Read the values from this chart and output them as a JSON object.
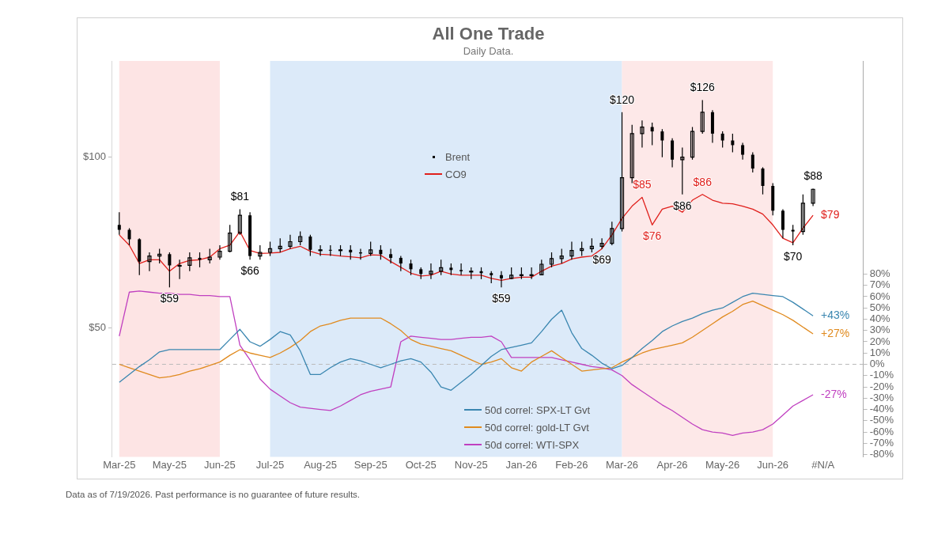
{
  "chart_data": {
    "type": "line",
    "title": "All One Trade",
    "subtitle": "Daily Data.",
    "annotations": [
      "Data as of 7/19/2026. Past performance is no guarantee of future results."
    ],
    "categories": [
      "Mar-25",
      null,
      null,
      null,
      null,
      "May-25",
      null,
      null,
      null,
      null,
      "Jun-25",
      null,
      null,
      null,
      null,
      "Jul-25",
      null,
      null,
      null,
      null,
      "Aug-25",
      null,
      null,
      null,
      null,
      "Sep-25",
      null,
      null,
      null,
      null,
      "Oct-25",
      null,
      null,
      null,
      null,
      "Nov-25",
      null,
      null,
      null,
      null,
      "Jan-26",
      null,
      null,
      null,
      null,
      "Feb-26",
      null,
      null,
      null,
      null,
      "Mar-26",
      null,
      null,
      null,
      null,
      "Apr-26",
      null,
      null,
      null,
      null,
      "May-26",
      null,
      null,
      null,
      null,
      "Jun-26",
      null,
      null,
      null,
      null,
      "#N/A"
    ],
    "log": "y",
    "ylim": [
      29.7,
      147.7
    ],
    "yticks": [
      {
        "value": 50,
        "label": "$50"
      },
      {
        "value": 100,
        "label": "$100"
      }
    ],
    "y2lim": [
      -82,
      269
    ],
    "y2ticks": [
      {
        "value": -80,
        "label": "-80%"
      },
      {
        "value": -70,
        "label": "-70%"
      },
      {
        "value": -60,
        "label": "-60%"
      },
      {
        "value": -50,
        "label": "-50%"
      },
      {
        "value": -40,
        "label": "-40%"
      },
      {
        "value": -30,
        "label": "-30%"
      },
      {
        "value": -20,
        "label": "-20%"
      },
      {
        "value": -10,
        "label": "-10%"
      },
      {
        "value": 0,
        "label": "0%"
      },
      {
        "value": 10,
        "label": "10%"
      },
      {
        "value": 20,
        "label": "20%"
      },
      {
        "value": 30,
        "label": "30%"
      },
      {
        "value": 40,
        "label": "40%"
      },
      {
        "value": 50,
        "label": "50%"
      },
      {
        "value": 60,
        "label": "60%"
      },
      {
        "value": 70,
        "label": "70%"
      },
      {
        "value": 80,
        "label": "80%"
      }
    ],
    "grid": false,
    "legend": "center",
    "ref_lines": [
      {
        "axis": "y2",
        "value": 0,
        "color": "#bbbbbb",
        "line_style": "dashed"
      }
    ],
    "bands": [
      {
        "axis": "x",
        "from": "Mar-25",
        "to": "Jun-25",
        "color": "#fde4e4"
      },
      {
        "axis": "x",
        "from": "Jul-25",
        "to": "Mar-26",
        "color": "#dceaf9"
      },
      {
        "axis": "x",
        "from": "Mar-26",
        "to": "Jun-26",
        "color": "#fde8e8"
      }
    ],
    "series": [
      {
        "name": "Brent",
        "type": "candlestick",
        "color": "#000000",
        "ohlc": [
          [
            76,
            80,
            73,
            74.5
          ],
          [
            74.5,
            75,
            70,
            71.7
          ],
          [
            71.7,
            72,
            62,
            65.5
          ],
          [
            65.5,
            68,
            63,
            67
          ],
          [
            67,
            69,
            65,
            67.5
          ],
          [
            67.5,
            68,
            59,
            64.5
          ],
          [
            64.5,
            66,
            61,
            64.5
          ],
          [
            64.5,
            68,
            63,
            66.5
          ],
          [
            66.5,
            68,
            64,
            66
          ],
          [
            66,
            69,
            65,
            66.7
          ],
          [
            66.7,
            70,
            66,
            68.3
          ],
          [
            68.3,
            76,
            68,
            73.5
          ],
          [
            73.5,
            81,
            73,
            79
          ],
          [
            79,
            80,
            66,
            67
          ],
          [
            67,
            70,
            66,
            68
          ],
          [
            68,
            71,
            67,
            69
          ],
          [
            69,
            72,
            68,
            69.7
          ],
          [
            69.7,
            73,
            69,
            71
          ],
          [
            71,
            74,
            70,
            72.5
          ],
          [
            72.5,
            73,
            67,
            68.7
          ],
          [
            68.7,
            70,
            67,
            68.7
          ],
          [
            68.7,
            70,
            67,
            68.5
          ],
          [
            68.5,
            70,
            67,
            68.7
          ],
          [
            68.7,
            70,
            66,
            68
          ],
          [
            68,
            69,
            66,
            67.7
          ],
          [
            67.7,
            71,
            67,
            68.7
          ],
          [
            68.7,
            70,
            66,
            67.5
          ],
          [
            67.5,
            69,
            65,
            66.5
          ],
          [
            66.5,
            67,
            63,
            65
          ],
          [
            65,
            66,
            62,
            63.5
          ],
          [
            63.5,
            64,
            61,
            62.3
          ],
          [
            62.3,
            65,
            61,
            63
          ],
          [
            63,
            66,
            62,
            63.9
          ],
          [
            63.9,
            65,
            62,
            63.3
          ],
          [
            63.3,
            65,
            62,
            63
          ],
          [
            63,
            64,
            61,
            63
          ],
          [
            63,
            64,
            61,
            62.5
          ],
          [
            62.5,
            63,
            60,
            62
          ],
          [
            62,
            63,
            59,
            61.2
          ],
          [
            61.2,
            64,
            61,
            62
          ],
          [
            62,
            64,
            61,
            62.1
          ],
          [
            62.1,
            64,
            61,
            62.1
          ],
          [
            62.1,
            66,
            62,
            64.8
          ],
          [
            64.8,
            68,
            64,
            66.3
          ],
          [
            66.3,
            69,
            65,
            67
          ],
          [
            67,
            71,
            66,
            68.5
          ],
          [
            68.5,
            71,
            67,
            69
          ],
          [
            69,
            72,
            68,
            69.7
          ],
          [
            69.7,
            72,
            69,
            70.5
          ],
          [
            70.5,
            77,
            70,
            74.9
          ],
          [
            74.9,
            120,
            74,
            92
          ],
          [
            92,
            114,
            90,
            110
          ],
          [
            110,
            116,
            104,
            113
          ],
          [
            113,
            115,
            105,
            111
          ],
          [
            111,
            112,
            100,
            107
          ],
          [
            107,
            108,
            96,
            99
          ],
          [
            99,
            104,
            86,
            100
          ],
          [
            100,
            113,
            99,
            111
          ],
          [
            111,
            126,
            110,
            120
          ],
          [
            120,
            121,
            106,
            110
          ],
          [
            110,
            111,
            104,
            107
          ],
          [
            107,
            110,
            102,
            105
          ],
          [
            105,
            106,
            99,
            101
          ],
          [
            101,
            102,
            94,
            95.5
          ],
          [
            95.5,
            96,
            86,
            89
          ],
          [
            89,
            90,
            79,
            80.5
          ],
          [
            80.5,
            81,
            72,
            74.5
          ],
          [
            74.5,
            76,
            70,
            74
          ],
          [
            74,
            86,
            73,
            83
          ],
          [
            83,
            88,
            82,
            87.8
          ],
          null
        ],
        "value_labels": [
          null,
          null,
          null,
          null,
          null,
          "$59",
          null,
          null,
          null,
          null,
          null,
          null,
          "$81",
          "$66",
          null,
          null,
          null,
          null,
          null,
          null,
          null,
          null,
          null,
          null,
          null,
          null,
          null,
          null,
          null,
          null,
          null,
          null,
          null,
          null,
          null,
          null,
          null,
          null,
          "$59",
          null,
          null,
          null,
          null,
          null,
          null,
          null,
          null,
          null,
          "$69",
          null,
          "$120",
          null,
          null,
          null,
          null,
          null,
          "$86",
          null,
          "$126",
          null,
          null,
          null,
          null,
          null,
          null,
          null,
          null,
          "$70",
          null,
          "$88",
          null
        ]
      },
      {
        "name": "CO9",
        "color": "#e0201c",
        "values": [
          73,
          70,
          65,
          66,
          66,
          63,
          65,
          65.8,
          66,
          66.7,
          69,
          70,
          74,
          68.5,
          67.7,
          67.8,
          68,
          69,
          69.7,
          68.3,
          67.5,
          67.3,
          67,
          66.8,
          66.5,
          67.3,
          67.2,
          65.5,
          64,
          62.5,
          61.8,
          62,
          63,
          62.3,
          62,
          62,
          62,
          61.2,
          60.7,
          61.2,
          61.5,
          61.5,
          63,
          64.3,
          65,
          66.2,
          66.7,
          67,
          69,
          73,
          78,
          82,
          85,
          76,
          81,
          82,
          80,
          84,
          86,
          84,
          83,
          82.8,
          82,
          81,
          79.4,
          76,
          72,
          70.7,
          75,
          79,
          null
        ],
        "value_labels": [
          null,
          null,
          null,
          null,
          null,
          null,
          null,
          null,
          null,
          null,
          null,
          null,
          null,
          null,
          null,
          null,
          null,
          null,
          null,
          null,
          null,
          null,
          null,
          null,
          null,
          null,
          null,
          null,
          null,
          null,
          null,
          null,
          null,
          null,
          null,
          null,
          null,
          null,
          null,
          null,
          null,
          null,
          null,
          null,
          null,
          null,
          null,
          null,
          null,
          null,
          null,
          null,
          "$85",
          "$76",
          null,
          null,
          null,
          null,
          "$86",
          null,
          null,
          null,
          null,
          null,
          null,
          null,
          null,
          null,
          null,
          "$79",
          null
        ]
      },
      {
        "name": "50d correl: SPX-LT Gvt",
        "axis": "y2",
        "color": "#3a86b0",
        "values": [
          -16,
          -9,
          -2,
          4,
          11,
          13,
          13,
          13,
          13,
          13,
          13,
          22,
          31,
          20,
          16,
          22,
          29,
          26,
          12,
          -9,
          -9,
          -3,
          2,
          5,
          3,
          0,
          -3,
          0,
          3,
          5,
          2,
          -7,
          -20,
          -23,
          -16,
          -9,
          -1,
          7,
          13,
          15,
          17,
          19,
          29,
          40,
          48,
          28,
          14,
          8,
          1,
          -4,
          -1,
          6,
          14,
          21,
          29,
          34,
          38,
          41,
          45,
          48,
          50,
          55,
          60,
          63,
          62,
          61,
          60,
          55,
          49,
          43,
          null
        ],
        "value_labels": [
          null,
          null,
          null,
          null,
          null,
          null,
          null,
          null,
          null,
          null,
          null,
          null,
          null,
          null,
          null,
          null,
          null,
          null,
          null,
          null,
          null,
          null,
          null,
          null,
          null,
          null,
          null,
          null,
          null,
          null,
          null,
          null,
          null,
          null,
          null,
          null,
          null,
          null,
          null,
          null,
          null,
          null,
          null,
          null,
          null,
          null,
          null,
          null,
          null,
          null,
          null,
          null,
          null,
          null,
          null,
          null,
          null,
          null,
          null,
          null,
          null,
          null,
          null,
          null,
          null,
          null,
          null,
          null,
          null,
          "+43%",
          null
        ]
      },
      {
        "name": "50d correl: gold-LT Gvt",
        "axis": "y2",
        "color": "#e08a1e",
        "values": [
          0,
          -3,
          -6,
          -9,
          -12,
          -11,
          -9,
          -6,
          -4,
          -1,
          2,
          8,
          13,
          10,
          8,
          6,
          10,
          15,
          21,
          29,
          34,
          36,
          39,
          41,
          41,
          41,
          41,
          36,
          30,
          22,
          18,
          16,
          14,
          12,
          8,
          4,
          0,
          2,
          5,
          -3,
          -6,
          2,
          7,
          12,
          6,
          0,
          -6,
          -5,
          -4,
          -3,
          2,
          6,
          10,
          13,
          15,
          17,
          19,
          24,
          30,
          36,
          42,
          47,
          53,
          56,
          52,
          48,
          44,
          39,
          33,
          27,
          null
        ],
        "value_labels": [
          null,
          null,
          null,
          null,
          null,
          null,
          null,
          null,
          null,
          null,
          null,
          null,
          null,
          null,
          null,
          null,
          null,
          null,
          null,
          null,
          null,
          null,
          null,
          null,
          null,
          null,
          null,
          null,
          null,
          null,
          null,
          null,
          null,
          null,
          null,
          null,
          null,
          null,
          null,
          null,
          null,
          null,
          null,
          null,
          null,
          null,
          null,
          null,
          null,
          null,
          null,
          null,
          null,
          null,
          null,
          null,
          null,
          null,
          null,
          null,
          null,
          null,
          null,
          null,
          null,
          null,
          null,
          null,
          null,
          "+27%",
          null
        ]
      },
      {
        "name": "50d correl: WTI-SPX",
        "axis": "y2",
        "color": "#c040c0",
        "values": [
          25,
          64,
          65,
          64,
          63,
          63,
          62,
          62,
          61,
          61,
          60,
          60,
          17,
          4,
          -13,
          -22,
          -28,
          -34,
          -38,
          -39,
          -40,
          -41,
          -37,
          -32,
          -27,
          -24,
          -22,
          -20,
          20,
          25,
          24,
          23,
          22,
          22,
          23,
          24,
          24,
          25,
          20,
          6,
          6,
          6,
          6,
          6,
          4,
          2,
          0,
          -2,
          -3,
          -5,
          -10,
          -18,
          -24,
          -30,
          -36,
          -41,
          -47,
          -53,
          -58,
          -60,
          -61,
          -63,
          -61,
          -60,
          -58,
          -53,
          -45,
          -37,
          -32,
          -27,
          null
        ],
        "value_labels": [
          null,
          null,
          null,
          null,
          null,
          null,
          null,
          null,
          null,
          null,
          null,
          null,
          null,
          null,
          null,
          null,
          null,
          null,
          null,
          null,
          null,
          null,
          null,
          null,
          null,
          null,
          null,
          null,
          null,
          null,
          null,
          null,
          null,
          null,
          null,
          null,
          null,
          null,
          null,
          null,
          null,
          null,
          null,
          null,
          null,
          null,
          null,
          null,
          null,
          null,
          null,
          null,
          null,
          null,
          null,
          null,
          null,
          null,
          null,
          null,
          null,
          null,
          null,
          null,
          null,
          null,
          null,
          null,
          null,
          "-27%",
          null
        ]
      }
    ]
  }
}
